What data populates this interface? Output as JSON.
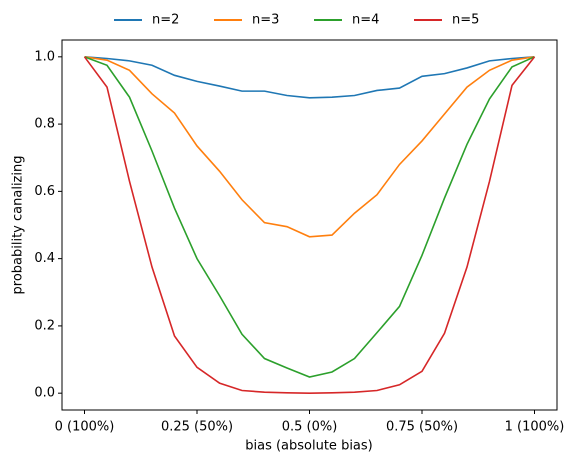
{
  "chart_data": {
    "type": "line",
    "x_label": "bias (absolute bias)",
    "y_label": "probability canalizing",
    "x": [
      0,
      0.05,
      0.1,
      0.15,
      0.2,
      0.25,
      0.3,
      0.35,
      0.4,
      0.45,
      0.5,
      0.55,
      0.6,
      0.65,
      0.7,
      0.75,
      0.8,
      0.85,
      0.9,
      0.95,
      1
    ],
    "series": [
      {
        "name": "n=2",
        "color": "#1f77b4",
        "values": [
          1.0,
          0.995,
          0.988,
          0.975,
          0.945,
          0.927,
          0.913,
          0.898,
          0.898,
          0.885,
          0.878,
          0.88,
          0.885,
          0.9,
          0.907,
          0.942,
          0.95,
          0.967,
          0.988,
          0.995,
          1.0
        ]
      },
      {
        "name": "n=3",
        "color": "#ff7f0e",
        "values": [
          1.0,
          0.99,
          0.96,
          0.89,
          0.833,
          0.735,
          0.66,
          0.575,
          0.507,
          0.495,
          0.465,
          0.47,
          0.535,
          0.59,
          0.68,
          0.75,
          0.83,
          0.91,
          0.96,
          0.99,
          1.0
        ]
      },
      {
        "name": "n=4",
        "color": "#2ca02c",
        "values": [
          1.0,
          0.975,
          0.88,
          0.72,
          0.55,
          0.4,
          0.29,
          0.175,
          0.103,
          0.075,
          0.048,
          0.063,
          0.103,
          0.18,
          0.258,
          0.41,
          0.58,
          0.74,
          0.875,
          0.97,
          1.0
        ]
      },
      {
        "name": "n=5",
        "color": "#d62728",
        "values": [
          1.0,
          0.91,
          0.63,
          0.375,
          0.17,
          0.077,
          0.03,
          0.008,
          0.003,
          0.001,
          0.0,
          0.001,
          0.003,
          0.008,
          0.025,
          0.065,
          0.178,
          0.375,
          0.63,
          0.915,
          1.0
        ]
      }
    ],
    "xlim": [
      -0.05,
      1.05
    ],
    "xticks": [
      {
        "value": 0,
        "label": "0 (100%)"
      },
      {
        "value": 0.25,
        "label": "0.25 (50%)"
      },
      {
        "value": 0.5,
        "label": "0.5 (0%)"
      },
      {
        "value": 0.75,
        "label": "0.75 (50%)"
      },
      {
        "value": 1,
        "label": "1 (100%)"
      }
    ],
    "ylim": [
      -0.05,
      1.05
    ],
    "yticks": [
      {
        "value": 0,
        "label": "0.0"
      },
      0.2,
      0.4,
      0.6,
      0.8,
      {
        "value": 1,
        "label": "1.0"
      }
    ],
    "legend": "top"
  }
}
